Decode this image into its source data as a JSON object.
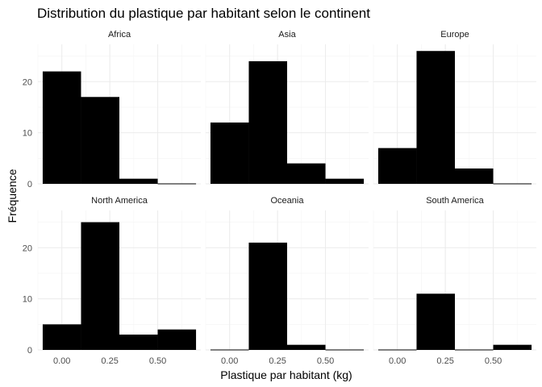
{
  "chart_data": {
    "type": "bar",
    "title": "Distribution du plastique par habitant selon le continent",
    "xlabel": "Plastique par habitant (kg)",
    "ylabel": "Fréquence",
    "xlim": [
      -0.125,
      0.725
    ],
    "ylim": [
      0,
      27.3
    ],
    "xticks": [
      0.0,
      0.25,
      0.5
    ],
    "xtick_labels": [
      "0.00",
      "0.25",
      "0.50"
    ],
    "yticks": [
      0,
      10,
      20
    ],
    "ytick_labels": [
      "0",
      "10",
      "20"
    ],
    "bin_width": 0.2,
    "bin_centers": [
      0.0,
      0.2,
      0.4,
      0.6
    ],
    "grid": true,
    "fill_color": "#000000",
    "panels": [
      {
        "name": "Africa",
        "values": [
          22,
          17,
          1,
          0
        ]
      },
      {
        "name": "Asia",
        "values": [
          12,
          24,
          4,
          1
        ]
      },
      {
        "name": "Europe",
        "values": [
          7,
          26,
          3,
          0
        ]
      },
      {
        "name": "North America",
        "values": [
          5,
          25,
          3,
          4
        ]
      },
      {
        "name": "Oceania",
        "values": [
          0,
          21,
          1,
          0
        ]
      },
      {
        "name": "South America",
        "values": [
          0,
          11,
          0,
          1
        ]
      }
    ]
  }
}
